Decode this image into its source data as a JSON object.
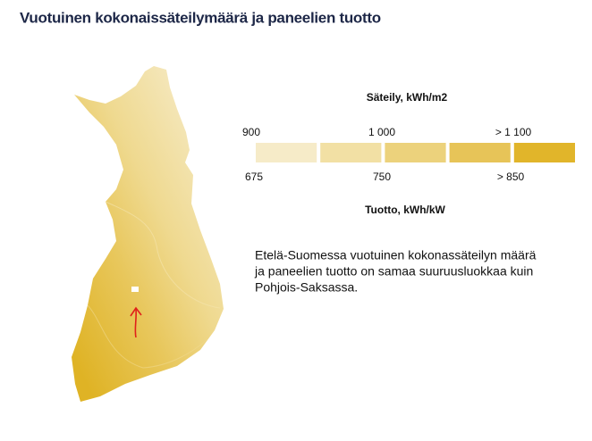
{
  "header": {
    "title": "Vuotuinen kokonaissäteilymäärä ja paneelien tuotto"
  },
  "legend": {
    "top_label": "Säteily, kWh/m2",
    "top_ticks": [
      "900",
      "1 000",
      "> 1 100"
    ],
    "bottom_ticks": [
      "675",
      "750",
      "> 850"
    ],
    "bottom_label": "Tuotto, kWh/kW",
    "colors": [
      "#f6ebc8",
      "#f2e0a4",
      "#ecd27c",
      "#e7c458",
      "#e1b52a"
    ]
  },
  "note": {
    "lines": [
      "Etelä-Suomessa vuotuinen kokonassäteilyn määrä",
      "ja paneelien tuotto on samaa suuruusluokkaa kuin",
      "Pohjois-Saksassa."
    ]
  }
}
